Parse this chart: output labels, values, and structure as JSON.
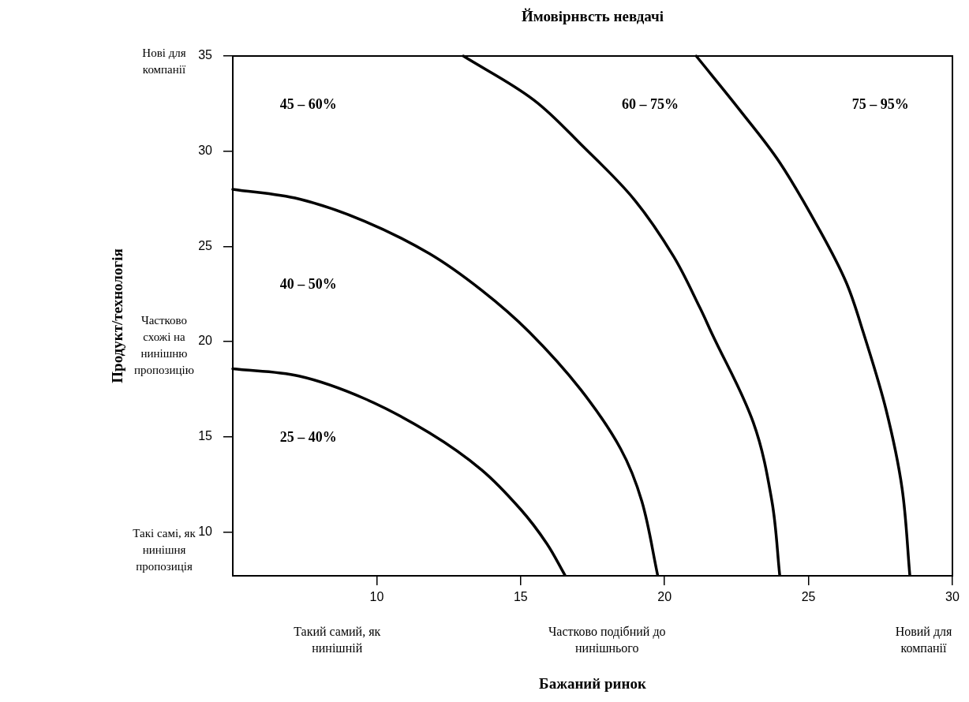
{
  "chart_data": {
    "type": "line",
    "title": "Ймовірнвсть невдачі",
    "xlabel": "Бажаний ринок",
    "ylabel": "Продукт/технологія",
    "xlim": [
      5,
      30
    ],
    "xticks": [
      10,
      15,
      20,
      25,
      30
    ],
    "ylim": [
      7.7,
      35
    ],
    "yticks": [
      10,
      15,
      20,
      25,
      30,
      35
    ],
    "grid": false,
    "legend": false,
    "marker": "none",
    "line_style": "solid",
    "series": [
      {
        "color": "#000000",
        "x": [
          5,
          7.3,
          9.57,
          11.83,
          13.64,
          15.0,
          15.91,
          16.54
        ],
        "values": [
          18.57,
          18.19,
          17.01,
          15.21,
          13.27,
          11.19,
          9.39,
          7.73
        ]
      },
      {
        "color": "#000000",
        "x": [
          5,
          7.3,
          9.57,
          11.83,
          13.64,
          15.3,
          17.08,
          18.47,
          19.21,
          19.76
        ],
        "values": [
          28.0,
          27.49,
          26.33,
          24.62,
          22.7,
          20.5,
          17.49,
          14.38,
          11.61,
          7.73
        ]
      },
      {
        "color": "#000000",
        "x": [
          13.01,
          15.45,
          17.2,
          18.93,
          20.31,
          21.24,
          21.62,
          23.08,
          23.73,
          24.0
        ],
        "values": [
          35,
          32.7,
          30.2,
          27.49,
          24.48,
          21.74,
          20.5,
          15.76,
          11.61,
          7.73
        ]
      },
      {
        "color": "#000000",
        "x": [
          21.1,
          22.62,
          24.0,
          25.39,
          26.31,
          26.9,
          27.69,
          28.25,
          28.52
        ],
        "values": [
          35,
          32.15,
          29.41,
          25.85,
          23.11,
          20.5,
          16.45,
          12.3,
          7.73
        ]
      }
    ],
    "annotations": [
      "45 – 60%",
      "40 – 50%",
      "25 – 40%",
      "60 – 75%",
      "75 – 95%",
      "Нові для компанії",
      "Частково схожі на нинішню пропозицію",
      "Такі самі, як нинішня пропозиція",
      "Такий самий, як нинішній",
      "Частково подібний до нинішнього",
      "Новий для компанії"
    ]
  }
}
